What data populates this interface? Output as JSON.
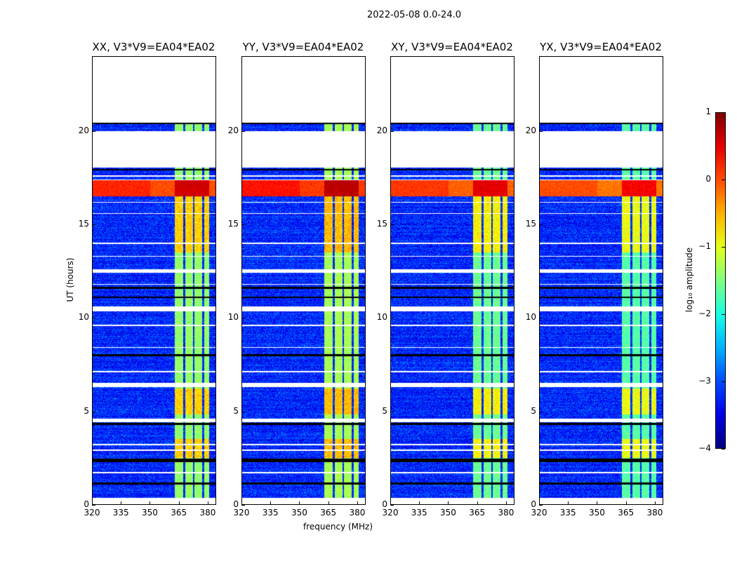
{
  "chart_data": {
    "type": "heatmap",
    "title": "2022-05-08 0.0-24.0",
    "xlabel": "frequency (MHz)",
    "ylabel": "UT (hours)",
    "xlim": [
      320,
      384.4
    ],
    "ylim": [
      0,
      24
    ],
    "xticks": [
      320,
      335,
      350,
      365,
      380
    ],
    "yticks": [
      0,
      5,
      10,
      15,
      20
    ],
    "panels": [
      {
        "title": "XX, V3*V9=EA04*EA02",
        "band_level": -1.4,
        "rfi_level": 0.2
      },
      {
        "title": "YY, V3*V9=EA04*EA02",
        "band_level": -1.3,
        "rfi_level": 0.3
      },
      {
        "title": "XY, V3*V9=EA04*EA02",
        "band_level": -1.6,
        "rfi_level": 0.1
      },
      {
        "title": "YX, V3*V9=EA04*EA02",
        "band_level": -1.7,
        "rfi_level": 0.0
      }
    ],
    "background_level": -3.2,
    "signal_band_mhz": [
      363,
      381
    ],
    "signal_subband_gaps_mhz": [
      368,
      373,
      378
    ],
    "rfi_hours": [
      16.5,
      17.4
    ],
    "bright_band_hours": [
      [
        13.5,
        16.5
      ],
      [
        4.8,
        6.2
      ],
      [
        2.5,
        3.5
      ]
    ],
    "flagged_hours": [
      [
        20.45,
        24
      ],
      [
        18.06,
        20.0
      ],
      [
        12.4,
        12.6
      ],
      [
        10.35,
        10.6
      ],
      [
        6.3,
        6.5
      ],
      [
        4.4,
        4.6
      ],
      [
        0,
        0.35
      ]
    ],
    "black_line_hours": [
      20.42,
      18.1,
      17.95,
      2.4,
      2.3,
      1.1,
      11.6,
      11.1,
      8.0,
      4.3
    ],
    "white_line_hours": [
      17.6,
      17.4,
      16.2,
      15.6,
      14.0,
      13.3,
      11.8,
      9.6,
      8.4,
      7.1,
      3.2,
      2.9,
      1.7
    ],
    "colorbar": {
      "label": "log₁₀ amplitude",
      "range": [
        -4,
        1
      ],
      "ticks": [
        "−4",
        "−3",
        "−2",
        "−1",
        "0",
        "1"
      ],
      "tick_values": [
        -4,
        -3,
        -2,
        -1,
        0,
        1
      ],
      "colormap": "jet"
    }
  }
}
